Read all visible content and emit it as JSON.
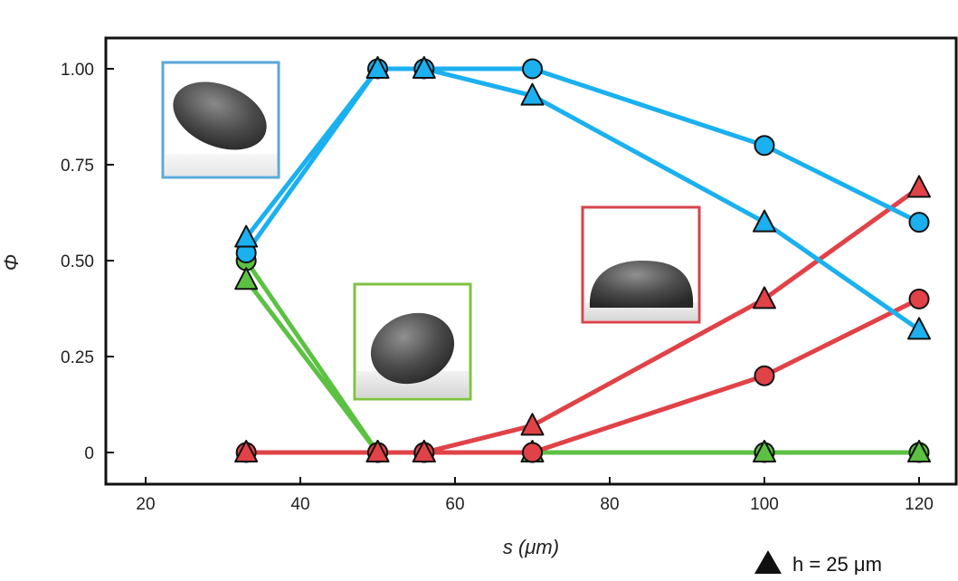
{
  "chart_data": {
    "type": "line",
    "xlabel": "s (μm)",
    "ylabel": "Φ",
    "xlim": [
      15,
      125
    ],
    "ylim": [
      -0.08,
      1.08
    ],
    "xticks": [
      "20",
      "40",
      "60",
      "80",
      "100",
      "120"
    ],
    "yticks": [
      "0",
      "0.25",
      "0.50",
      "0.75",
      "1.00"
    ],
    "grid": false,
    "legend": {
      "label": "h = 25 μm",
      "marker": "triangle",
      "placement": "bottom-right"
    },
    "colors": {
      "blue": "#1bb0ef",
      "red": "#e04248",
      "green": "#5cc143"
    },
    "series": [
      {
        "color": "blue",
        "marker": "circle",
        "x": [
          33,
          50,
          56,
          70,
          100,
          120
        ],
        "y": [
          0.52,
          1.0,
          1.0,
          1.0,
          0.8,
          0.6
        ]
      },
      {
        "color": "blue",
        "marker": "triangle",
        "x": [
          33,
          50,
          56,
          70,
          100,
          120
        ],
        "y": [
          0.56,
          1.0,
          1.0,
          0.93,
          0.6,
          0.32
        ]
      },
      {
        "color": "red",
        "marker": "circle",
        "x": [
          33,
          50,
          56,
          70,
          100,
          120
        ],
        "y": [
          0.0,
          0.0,
          0.0,
          0.0,
          0.2,
          0.4
        ]
      },
      {
        "color": "red",
        "marker": "triangle",
        "x": [
          33,
          50,
          56,
          70,
          100,
          120
        ],
        "y": [
          0.0,
          0.0,
          0.0,
          0.07,
          0.4,
          0.69
        ]
      },
      {
        "color": "green",
        "marker": "circle",
        "x": [
          33,
          50,
          56,
          70,
          100,
          120
        ],
        "y": [
          0.5,
          0.0,
          0.0,
          0.0,
          0.0,
          0.0
        ]
      },
      {
        "color": "green",
        "marker": "triangle",
        "x": [
          33,
          50,
          56,
          70,
          100,
          120
        ],
        "y": [
          0.45,
          0.0,
          0.0,
          0.0,
          0.0,
          0.0
        ]
      }
    ],
    "insets": [
      {
        "name": "inset-blue",
        "border_color": "#5aa8d8",
        "content": "droplet-lifted"
      },
      {
        "name": "inset-green",
        "border_color": "#7ec242",
        "content": "droplet-standing"
      },
      {
        "name": "inset-red",
        "border_color": "#d8434b",
        "content": "droplet-spread"
      }
    ]
  }
}
